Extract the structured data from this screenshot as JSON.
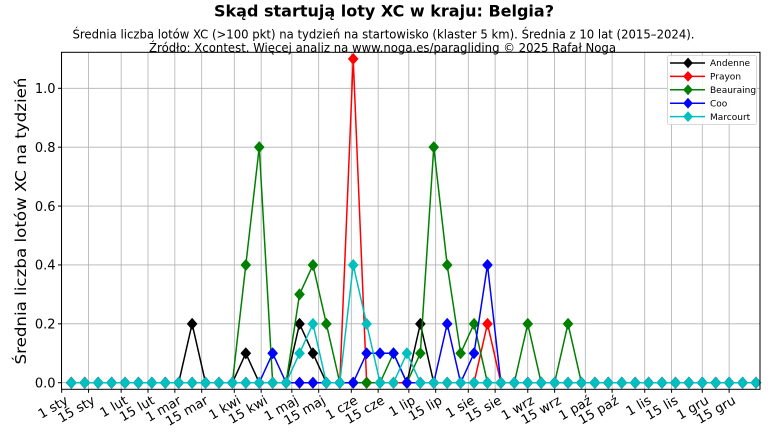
{
  "header": {
    "title": "Skąd startują loty XC w kraju: Belgia?",
    "subtitle_line1": "Średnia liczba lotów XC (>100 pkt) na tydzień na startowisko (klaster 5 km). Średnia z 10 lat (2015–2024).",
    "subtitle_line2": "Źródło: Xcontest. Więcej analiz na www.noga.es/paragliding © 2025 Rafał Noga"
  },
  "axes": {
    "ylabel": "Średnia liczba lotów XC na tydzień"
  },
  "chart_data": {
    "type": "line",
    "title": "Skąd startują loty XC w kraju: Belgia?",
    "subtitle": "Średnia liczba lotów XC (>100 pkt) na tydzień na startowisko (klaster 5 km). Średnia z 10 lat (2015–2024). Źródło: Xcontest. Więcej analiz na www.noga.es/paragliding © 2025 Rafał Noga",
    "xlabel": "",
    "ylabel": "Średnia liczba lotów XC na tydzień",
    "x_unit": "day_of_year",
    "x": [
      6,
      13,
      20,
      27,
      34,
      41,
      48,
      55,
      62,
      69,
      76,
      83,
      90,
      97,
      104,
      111,
      118,
      125,
      132,
      139,
      146,
      153,
      160,
      167,
      174,
      181,
      188,
      195,
      202,
      209,
      216,
      223,
      230,
      237,
      244,
      251,
      258,
      265,
      272,
      279,
      286,
      293,
      300,
      307,
      314,
      321,
      328,
      335,
      342,
      349,
      356,
      363
    ],
    "xlim": [
      0.9,
      365.1
    ],
    "ylim": [
      -0.0224,
      1.1223
    ],
    "xticks": [
      {
        "day": 1,
        "label": "1 sty"
      },
      {
        "day": 15,
        "label": "15 sty"
      },
      {
        "day": 32,
        "label": "1 lut"
      },
      {
        "day": 46,
        "label": "15 lut"
      },
      {
        "day": 60,
        "label": "1 mar"
      },
      {
        "day": 74,
        "label": "15 mar"
      },
      {
        "day": 91,
        "label": "1 kwi"
      },
      {
        "day": 105,
        "label": "15 kwi"
      },
      {
        "day": 121,
        "label": "1 maj"
      },
      {
        "day": 135,
        "label": "15 maj"
      },
      {
        "day": 152,
        "label": "1 cze"
      },
      {
        "day": 166,
        "label": "15 cze"
      },
      {
        "day": 182,
        "label": "1 lip"
      },
      {
        "day": 196,
        "label": "15 lip"
      },
      {
        "day": 213,
        "label": "1 sie"
      },
      {
        "day": 227,
        "label": "15 sie"
      },
      {
        "day": 244,
        "label": "1 wrz"
      },
      {
        "day": 258,
        "label": "15 wrz"
      },
      {
        "day": 274,
        "label": "1 paź"
      },
      {
        "day": 288,
        "label": "15 paź"
      },
      {
        "day": 305,
        "label": "1 lis"
      },
      {
        "day": 319,
        "label": "15 lis"
      },
      {
        "day": 335,
        "label": "1 gru"
      },
      {
        "day": 349,
        "label": "15 gru"
      }
    ],
    "yticks": [
      {
        "value": 0.0,
        "label": "0.0"
      },
      {
        "value": 0.2,
        "label": "0.2"
      },
      {
        "value": 0.4,
        "label": "0.4"
      },
      {
        "value": 0.6,
        "label": "0.6"
      },
      {
        "value": 0.8,
        "label": "0.8"
      },
      {
        "value": 1.0,
        "label": "1.0"
      }
    ],
    "grid": true,
    "legend_position": "upper right",
    "marker": "diamond",
    "series": [
      {
        "name": "Andenne",
        "color": "#000000",
        "values": [
          0,
          0,
          0,
          0,
          0,
          0,
          0,
          0,
          0,
          0.2,
          0,
          0,
          0,
          0.1,
          0,
          0,
          0,
          0.2,
          0.1,
          0,
          0,
          0,
          0,
          0,
          0,
          0,
          0.2,
          0,
          0,
          0,
          0,
          0,
          0,
          0,
          0,
          0,
          0,
          0,
          0,
          0,
          0,
          0,
          0,
          0,
          0,
          0,
          0,
          0,
          0,
          0,
          0,
          0
        ]
      },
      {
        "name": "Prayon",
        "color": "#ff0000",
        "values": [
          0,
          0,
          0,
          0,
          0,
          0,
          0,
          0,
          0,
          0,
          0,
          0,
          0,
          0,
          0,
          0,
          0,
          0,
          0,
          0,
          0,
          1.1,
          0,
          0,
          0,
          0,
          0,
          0,
          0,
          0,
          0,
          0.2,
          0,
          0,
          0,
          0,
          0,
          0,
          0,
          0,
          0,
          0,
          0,
          0,
          0,
          0,
          0,
          0,
          0,
          0,
          0,
          0
        ]
      },
      {
        "name": "Beauraing",
        "color": "#008000",
        "values": [
          0,
          0,
          0,
          0,
          0,
          0,
          0,
          0,
          0,
          0,
          0,
          0,
          0,
          0.4,
          0.8,
          0,
          0,
          0.3,
          0.4,
          0.2,
          0,
          0,
          0,
          0,
          0.1,
          0,
          0.1,
          0.8,
          0.4,
          0.1,
          0.2,
          0,
          0,
          0,
          0.2,
          0,
          0,
          0.2,
          0,
          0,
          0,
          0,
          0,
          0,
          0,
          0,
          0,
          0,
          0,
          0,
          0,
          0
        ]
      },
      {
        "name": "Coo",
        "color": "#0000ff",
        "values": [
          0,
          0,
          0,
          0,
          0,
          0,
          0,
          0,
          0,
          0,
          0,
          0,
          0,
          0,
          0,
          0.1,
          0,
          0,
          0,
          0,
          0,
          0,
          0.1,
          0.1,
          0.1,
          0,
          0,
          0,
          0.2,
          0,
          0.1,
          0.4,
          0,
          0,
          0,
          0,
          0,
          0,
          0,
          0,
          0,
          0,
          0,
          0,
          0,
          0,
          0,
          0,
          0,
          0,
          0,
          0
        ]
      },
      {
        "name": "Marcourt",
        "color": "#00bfbf",
        "values": [
          0,
          0,
          0,
          0,
          0,
          0,
          0,
          0,
          0,
          0,
          0,
          0,
          0,
          0,
          0,
          0,
          0,
          0.1,
          0.2,
          0,
          0,
          0.4,
          0.2,
          0,
          0,
          0.1,
          0,
          0,
          0,
          0,
          0,
          0,
          0,
          0,
          0,
          0,
          0,
          0,
          0,
          0,
          0,
          0,
          0,
          0,
          0,
          0,
          0,
          0,
          0,
          0,
          0,
          0
        ]
      }
    ]
  }
}
